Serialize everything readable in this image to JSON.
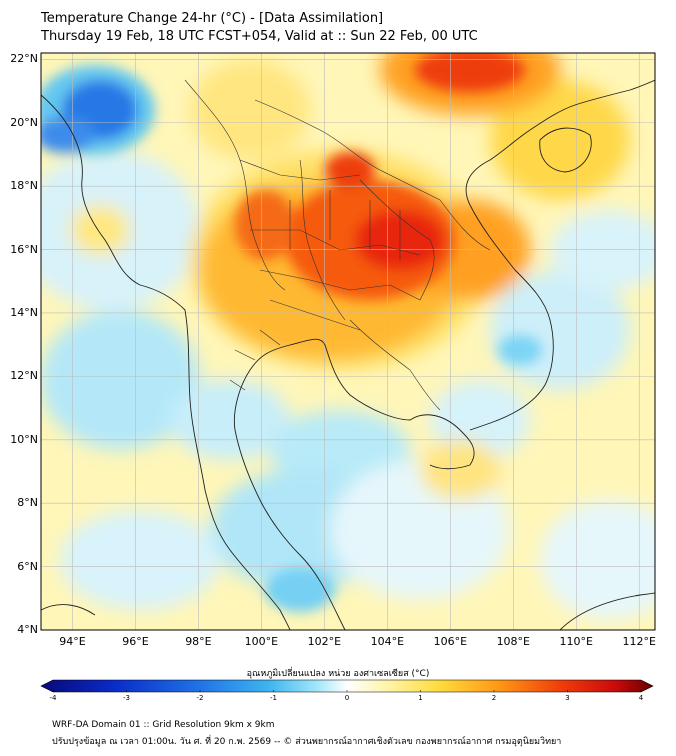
{
  "title": {
    "line1": "Temperature Change 24-hr (°C) - [Data Assimilation]",
    "line2": "Thursday 19 Feb, 18 UTC FCST+054, Valid at :: Sun 22 Feb, 00 UTC"
  },
  "map": {
    "lat_ticks": [
      "22°N",
      "20°N",
      "18°N",
      "16°N",
      "14°N",
      "12°N",
      "10°N",
      "8°N",
      "6°N",
      "4°N"
    ],
    "lon_ticks": [
      "94°E",
      "96°E",
      "98°E",
      "100°E",
      "102°E",
      "104°E",
      "106°E",
      "108°E",
      "110°E",
      "112°E"
    ],
    "extent": {
      "lon_min": 93,
      "lon_max": 112.5,
      "lat_min": 4,
      "lat_max": 22.2
    }
  },
  "colorbar": {
    "label": "อุณหภูมิเปลี่ยนแปลง หน่วย องศาเซลเซียส (°C)",
    "min": -4,
    "max": 4,
    "ticks": [
      "-4",
      "-3",
      "-2",
      "-1",
      "0",
      "1",
      "2",
      "3",
      "4"
    ],
    "colors": [
      "#08087a",
      "#0a2cc8",
      "#1e6ee6",
      "#3cb4f0",
      "#a0e6fa",
      "#ffffff",
      "#fff5b0",
      "#ffdc3c",
      "#ff9614",
      "#f03c0a",
      "#c80a0a",
      "#640000"
    ]
  },
  "footer": {
    "line1": "WRF-DA Domain 01 :: Grid Resolution 9km x 9km",
    "line2": "ปรับปรุงข้อมูล ณ เวลา 01:00น. วัน ศ. ที่ 20 ก.พ. 2569 -- © ส่วนพยากรณ์อากาศเชิงตัวเลข กองพยากรณ์อากาศ กรมอุตุนิยมวิทยา"
  }
}
